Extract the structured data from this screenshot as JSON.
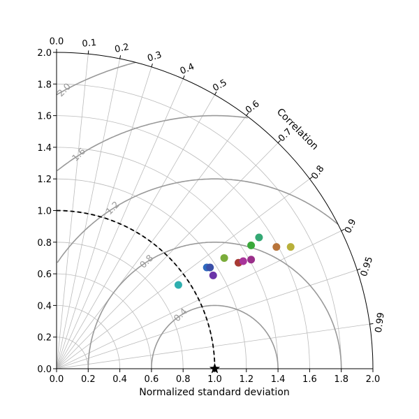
{
  "chart_data": {
    "type": "scatter",
    "subtype": "taylor-diagram",
    "xlabel": "Normalized standard deviation",
    "correlation_label": "Correlation",
    "std_range": [
      0,
      2.0
    ],
    "std_ticks": [
      "0.0",
      "0.2",
      "0.4",
      "0.6",
      "0.8",
      "1.0",
      "1.2",
      "1.4",
      "1.6",
      "1.8",
      "2.0"
    ],
    "correlation_ticks": [
      {
        "value": 0.0,
        "label": "0.0"
      },
      {
        "value": 0.1,
        "label": "0.1"
      },
      {
        "value": 0.2,
        "label": "0.2"
      },
      {
        "value": 0.3,
        "label": "0.3"
      },
      {
        "value": 0.4,
        "label": "0.4"
      },
      {
        "value": 0.5,
        "label": "0.5"
      },
      {
        "value": 0.6,
        "label": "0.6"
      },
      {
        "value": 0.7,
        "label": "0.7"
      },
      {
        "value": 0.8,
        "label": "0.8"
      },
      {
        "value": 0.9,
        "label": "0.9"
      },
      {
        "value": 0.95,
        "label": "0.95"
      },
      {
        "value": 0.99,
        "label": "0.99"
      }
    ],
    "grid_std_arcs": [
      0.2,
      0.4,
      0.6,
      0.8,
      1.0,
      1.2,
      1.4,
      1.6,
      1.8
    ],
    "reference": {
      "std": 1.0,
      "correlation": 1.0,
      "marker": "star"
    },
    "rms_contours": [
      {
        "value": 0.4,
        "label": "0.4"
      },
      {
        "value": 0.8,
        "label": "0.8"
      },
      {
        "value": 1.2,
        "label": "1.2"
      },
      {
        "value": 1.6,
        "label": "1.6"
      },
      {
        "value": 2.0,
        "label": "2.0"
      }
    ],
    "points": [
      {
        "x": 0.77,
        "y": 0.53,
        "color": "#2fafaf"
      },
      {
        "x": 0.95,
        "y": 0.64,
        "color": "#2f6bbf"
      },
      {
        "x": 0.97,
        "y": 0.64,
        "color": "#3a4fa8"
      },
      {
        "x": 0.99,
        "y": 0.59,
        "color": "#6a34a8"
      },
      {
        "x": 1.06,
        "y": 0.7,
        "color": "#7aac3a"
      },
      {
        "x": 1.15,
        "y": 0.67,
        "color": "#a83a34"
      },
      {
        "x": 1.18,
        "y": 0.68,
        "color": "#a8349a"
      },
      {
        "x": 1.23,
        "y": 0.69,
        "color": "#9a2f8a"
      },
      {
        "x": 1.23,
        "y": 0.78,
        "color": "#3aa83a"
      },
      {
        "x": 1.28,
        "y": 0.83,
        "color": "#34a874"
      },
      {
        "x": 1.39,
        "y": 0.77,
        "color": "#b8743a"
      },
      {
        "x": 1.48,
        "y": 0.77,
        "color": "#b8b03a"
      }
    ]
  }
}
